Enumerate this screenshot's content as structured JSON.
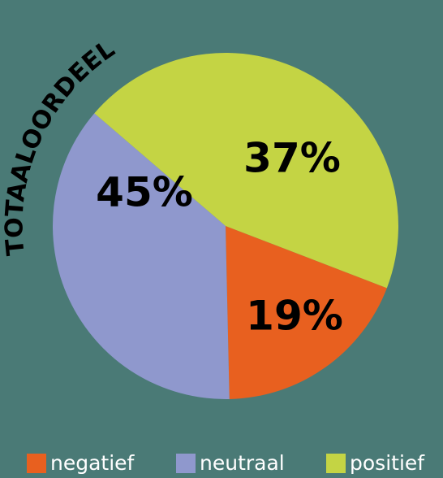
{
  "chart_data": {
    "type": "pie",
    "title": "TOTAALOORDEEL",
    "categories": [
      "negatief",
      "neutraal",
      "positief"
    ],
    "values": [
      19,
      37,
      45
    ],
    "value_labels": [
      "19%",
      "37%",
      "45%"
    ],
    "colors": [
      "#e8601f",
      "#8f98cd",
      "#c4d444"
    ],
    "legend": "bottom"
  }
}
